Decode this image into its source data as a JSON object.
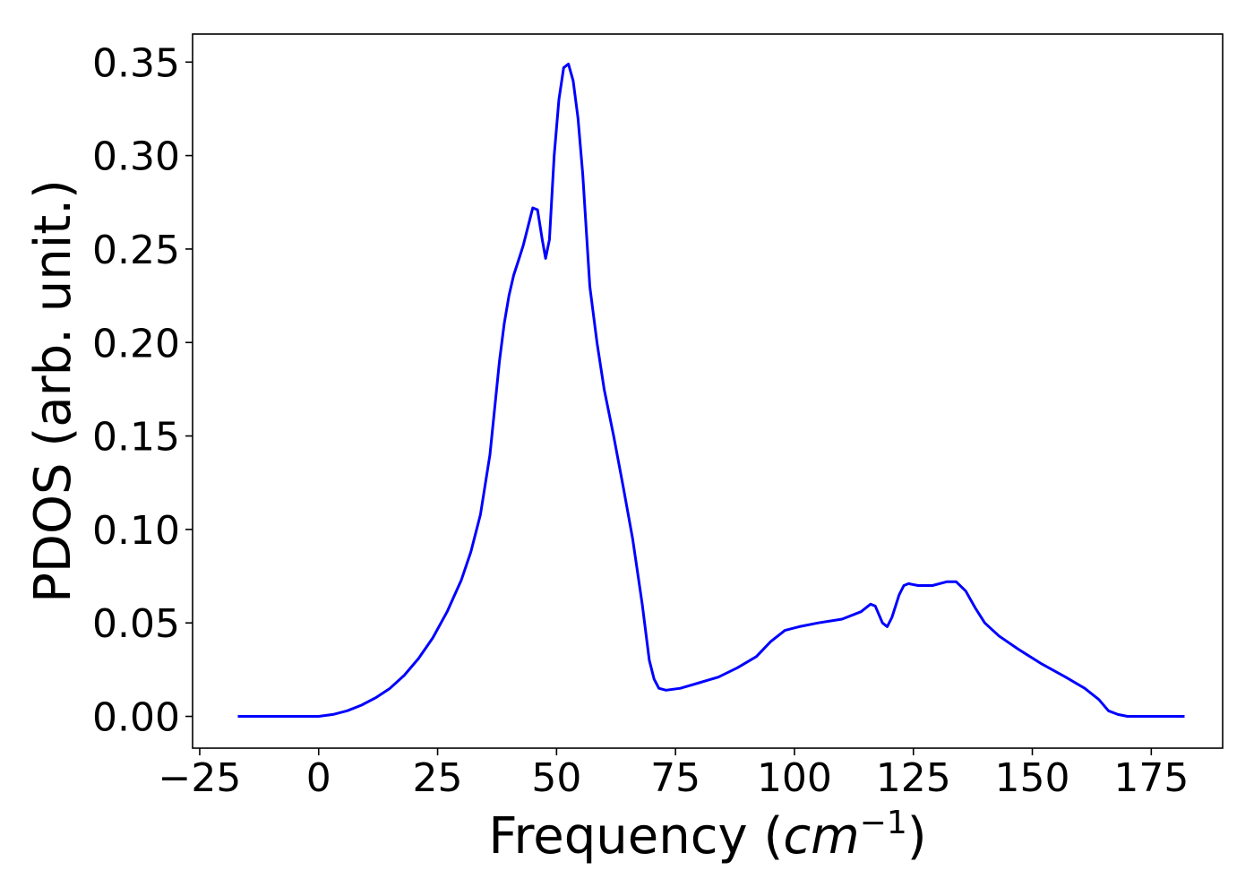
{
  "chart_data": {
    "type": "line",
    "title": "",
    "xlabel_main": "Frequency (",
    "xlabel_unit": "cm",
    "xlabel_sup": "−1",
    "xlabel_close": ")",
    "ylabel": "PDOS (arb. unit.)",
    "xlim": [
      -26.5,
      190
    ],
    "ylim": [
      -0.017,
      0.365
    ],
    "xticks": [
      -25,
      0,
      25,
      50,
      75,
      100,
      125,
      150,
      175
    ],
    "xtick_labels": [
      "−25",
      "0",
      "25",
      "50",
      "75",
      "100",
      "125",
      "150",
      "175"
    ],
    "yticks": [
      0.0,
      0.05,
      0.1,
      0.15,
      0.2,
      0.25,
      0.3,
      0.35
    ],
    "ytick_labels": [
      "0.00",
      "0.05",
      "0.10",
      "0.15",
      "0.20",
      "0.25",
      "0.30",
      "0.35"
    ],
    "grid": false,
    "series": [
      {
        "color": "#0000ff",
        "points": [
          [
            -17,
            0.0
          ],
          [
            -10,
            0.0
          ],
          [
            -5,
            0.0
          ],
          [
            0,
            0.0
          ],
          [
            3,
            0.001
          ],
          [
            6,
            0.003
          ],
          [
            9,
            0.006
          ],
          [
            12,
            0.01
          ],
          [
            15,
            0.015
          ],
          [
            18,
            0.022
          ],
          [
            21,
            0.031
          ],
          [
            24,
            0.042
          ],
          [
            27,
            0.056
          ],
          [
            30,
            0.073
          ],
          [
            32,
            0.088
          ],
          [
            34,
            0.108
          ],
          [
            36,
            0.14
          ],
          [
            37,
            0.165
          ],
          [
            38,
            0.19
          ],
          [
            39,
            0.21
          ],
          [
            40,
            0.225
          ],
          [
            41,
            0.236
          ],
          [
            42,
            0.244
          ],
          [
            43,
            0.252
          ],
          [
            44,
            0.262
          ],
          [
            45,
            0.272
          ],
          [
            46,
            0.271
          ],
          [
            47,
            0.255
          ],
          [
            47.7,
            0.245
          ],
          [
            48.5,
            0.255
          ],
          [
            49.5,
            0.3
          ],
          [
            50.5,
            0.33
          ],
          [
            51.5,
            0.347
          ],
          [
            52.5,
            0.349
          ],
          [
            53.5,
            0.34
          ],
          [
            54.5,
            0.32
          ],
          [
            55.5,
            0.29
          ],
          [
            57,
            0.23
          ],
          [
            58.5,
            0.2
          ],
          [
            60,
            0.175
          ],
          [
            62,
            0.15
          ],
          [
            64,
            0.123
          ],
          [
            66,
            0.095
          ],
          [
            68,
            0.06
          ],
          [
            69.5,
            0.03
          ],
          [
            70.5,
            0.02
          ],
          [
            71.5,
            0.015
          ],
          [
            73,
            0.014
          ],
          [
            76,
            0.015
          ],
          [
            80,
            0.018
          ],
          [
            84,
            0.021
          ],
          [
            88,
            0.026
          ],
          [
            92,
            0.032
          ],
          [
            95,
            0.04
          ],
          [
            98,
            0.046
          ],
          [
            101,
            0.048
          ],
          [
            105,
            0.05
          ],
          [
            110,
            0.052
          ],
          [
            114,
            0.056
          ],
          [
            116,
            0.06
          ],
          [
            117,
            0.059
          ],
          [
            118.5,
            0.05
          ],
          [
            119.5,
            0.048
          ],
          [
            120.5,
            0.053
          ],
          [
            122,
            0.065
          ],
          [
            123,
            0.07
          ],
          [
            124,
            0.071
          ],
          [
            126,
            0.07
          ],
          [
            129,
            0.07
          ],
          [
            132,
            0.072
          ],
          [
            134,
            0.072
          ],
          [
            136,
            0.067
          ],
          [
            138,
            0.058
          ],
          [
            140,
            0.05
          ],
          [
            143,
            0.043
          ],
          [
            147,
            0.036
          ],
          [
            152,
            0.028
          ],
          [
            157,
            0.021
          ],
          [
            161,
            0.015
          ],
          [
            164,
            0.009
          ],
          [
            166,
            0.003
          ],
          [
            168,
            0.001
          ],
          [
            170,
            0.0
          ],
          [
            175,
            0.0
          ],
          [
            182,
            0.0
          ]
        ]
      }
    ]
  }
}
